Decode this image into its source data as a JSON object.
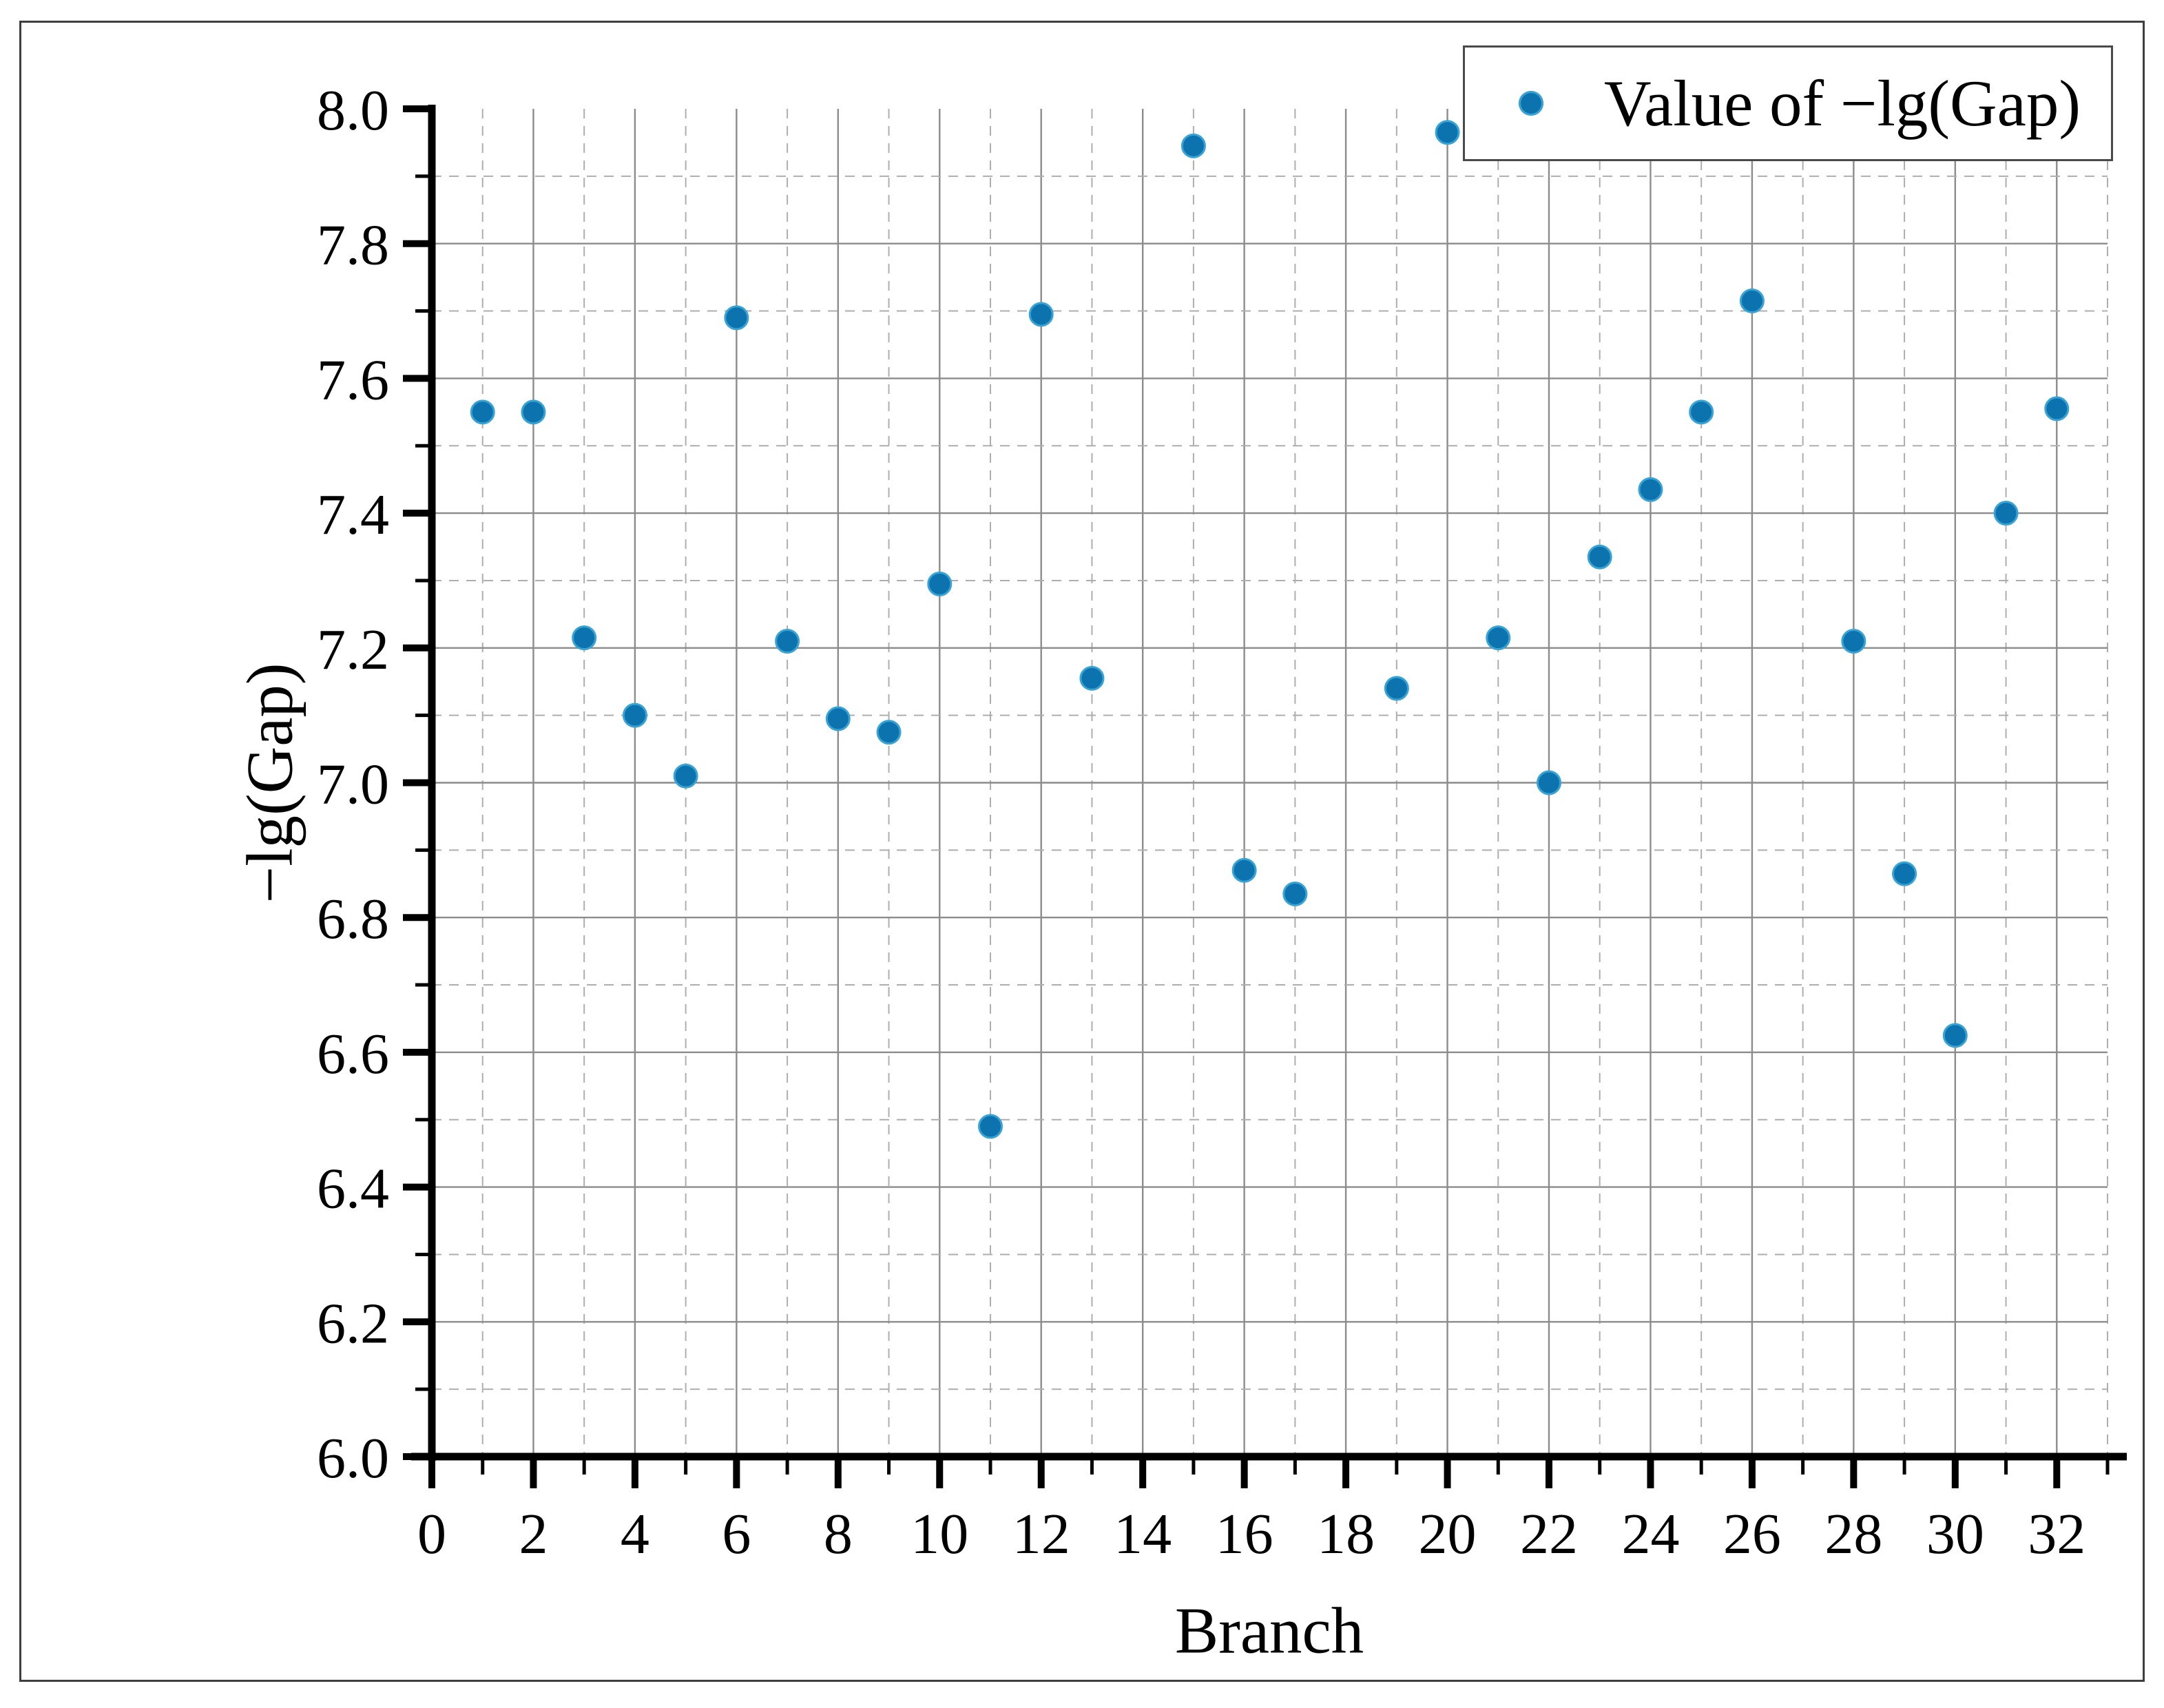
{
  "chart_data": {
    "type": "scatter",
    "title": "",
    "xlabel": "Branch",
    "ylabel": "−lg(Gap)",
    "xlim": [
      0,
      33
    ],
    "ylim": [
      6.0,
      8.0
    ],
    "x_tick_major_step": 2,
    "x_tick_minor_step": 1,
    "y_tick_major_step": 0.2,
    "y_tick_minor_step": 0.1,
    "x_tick_labels": [
      "0",
      "2",
      "4",
      "6",
      "8",
      "10",
      "12",
      "14",
      "16",
      "18",
      "20",
      "22",
      "24",
      "26",
      "28",
      "30",
      "32"
    ],
    "y_tick_labels": [
      "6.0",
      "6.2",
      "6.4",
      "6.6",
      "6.8",
      "7.0",
      "7.2",
      "7.4",
      "7.6",
      "7.8",
      "8.0"
    ],
    "grid": {
      "major_style": "solid",
      "minor_style": "dashed",
      "major_color": "#8c8c8c",
      "minor_color": "#aeaeae"
    },
    "legend": {
      "label": "Value of −lg(Gap)",
      "position": "top-right"
    },
    "series": [
      {
        "name": "Value of −lg(Gap)",
        "marker": "circle",
        "color": "#0d73ae",
        "marker_edge_color": "#39a3d3",
        "points": [
          [
            1,
            7.55
          ],
          [
            2,
            7.55
          ],
          [
            3,
            7.215
          ],
          [
            4,
            7.1
          ],
          [
            5,
            7.01
          ],
          [
            6,
            7.69
          ],
          [
            7,
            7.21
          ],
          [
            8,
            7.095
          ],
          [
            9,
            7.075
          ],
          [
            10,
            7.295
          ],
          [
            11,
            6.49
          ],
          [
            12,
            7.695
          ],
          [
            13,
            7.155
          ],
          [
            15,
            7.945
          ],
          [
            16,
            6.87
          ],
          [
            17,
            6.835
          ],
          [
            19,
            7.14
          ],
          [
            20,
            7.965
          ],
          [
            21,
            7.215
          ],
          [
            22,
            7.0
          ],
          [
            23,
            7.335
          ],
          [
            24,
            7.435
          ],
          [
            25,
            7.55
          ],
          [
            26,
            7.715
          ],
          [
            28,
            7.21
          ],
          [
            29,
            6.865
          ],
          [
            30,
            6.625
          ],
          [
            31,
            7.4
          ],
          [
            32,
            7.555
          ]
        ]
      }
    ]
  },
  "colors": {
    "spine": "#000000",
    "tick": "#000000",
    "figure_border": "#3f3f3f",
    "background": "#ffffff"
  }
}
